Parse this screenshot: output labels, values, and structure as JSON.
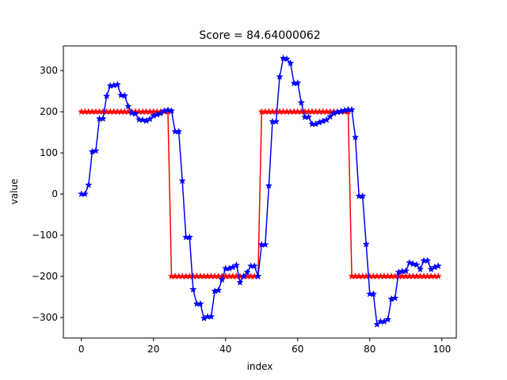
{
  "chart_data": {
    "type": "line",
    "title": "Score = 84.64000062",
    "xlabel": "index",
    "ylabel": "value",
    "xlim": [
      -5,
      104
    ],
    "ylim": [
      -350,
      360
    ],
    "xticks": [
      0,
      20,
      40,
      60,
      80,
      100
    ],
    "yticks": [
      -300,
      -200,
      -100,
      0,
      100,
      200,
      300
    ],
    "grid": false,
    "series": [
      {
        "color": "#ff0000",
        "marker": "star",
        "x": [
          0,
          1,
          2,
          3,
          4,
          5,
          6,
          7,
          8,
          9,
          10,
          11,
          12,
          13,
          14,
          15,
          16,
          17,
          18,
          19,
          20,
          21,
          22,
          23,
          24,
          25,
          26,
          27,
          28,
          29,
          30,
          31,
          32,
          33,
          34,
          35,
          36,
          37,
          38,
          39,
          40,
          41,
          42,
          43,
          44,
          45,
          46,
          47,
          48,
          49,
          50,
          51,
          52,
          53,
          54,
          55,
          56,
          57,
          58,
          59,
          60,
          61,
          62,
          63,
          64,
          65,
          66,
          67,
          68,
          69,
          70,
          71,
          72,
          73,
          74,
          75,
          76,
          77,
          78,
          79,
          80,
          81,
          82,
          83,
          84,
          85,
          86,
          87,
          88,
          89,
          90,
          91,
          92,
          93,
          94,
          95,
          96,
          97,
          98,
          99
        ],
        "values": [
          200,
          200,
          200,
          200,
          200,
          200,
          200,
          200,
          200,
          200,
          200,
          200,
          200,
          200,
          200,
          200,
          200,
          200,
          200,
          200,
          200,
          200,
          200,
          200,
          200,
          -200,
          -200,
          -200,
          -200,
          -200,
          -200,
          -200,
          -200,
          -200,
          -200,
          -200,
          -200,
          -200,
          -200,
          -200,
          -200,
          -200,
          -200,
          -200,
          -200,
          -200,
          -200,
          -200,
          -200,
          -200,
          200,
          200,
          200,
          200,
          200,
          200,
          200,
          200,
          200,
          200,
          200,
          200,
          200,
          200,
          200,
          200,
          200,
          200,
          200,
          200,
          200,
          200,
          200,
          200,
          200,
          -200,
          -200,
          -200,
          -200,
          -200,
          -200,
          -200,
          -200,
          -200,
          -200,
          -200,
          -200,
          -200,
          -200,
          -200,
          -200,
          -200,
          -200,
          -200,
          -200,
          -200,
          -200,
          -200,
          -200,
          -200
        ]
      },
      {
        "color": "#0000ff",
        "marker": "star",
        "x": [
          0,
          1,
          2,
          3,
          4,
          5,
          6,
          7,
          8,
          9,
          10,
          11,
          12,
          13,
          14,
          15,
          16,
          17,
          18,
          19,
          20,
          21,
          22,
          23,
          24,
          25,
          26,
          27,
          28,
          29,
          30,
          31,
          32,
          33,
          34,
          35,
          36,
          37,
          38,
          39,
          40,
          41,
          42,
          43,
          44,
          45,
          46,
          47,
          48,
          49,
          50,
          51,
          52,
          53,
          54,
          55,
          56,
          57,
          58,
          59,
          60,
          61,
          62,
          63,
          64,
          65,
          66,
          67,
          68,
          69,
          70,
          71,
          72,
          73,
          74,
          75,
          76,
          77,
          78,
          79,
          80,
          81,
          82,
          83,
          84,
          85,
          86,
          87,
          88,
          89,
          90,
          91,
          92,
          93,
          94,
          95,
          96,
          97,
          98,
          99
        ],
        "values": [
          0,
          0,
          22,
          103,
          105,
          183,
          183,
          238,
          263,
          264,
          266,
          240,
          239,
          213,
          197,
          195,
          181,
          180,
          178,
          182,
          190,
          193,
          196,
          202,
          204,
          202,
          152,
          152,
          32,
          -105,
          -105,
          -232,
          -267,
          -267,
          -302,
          -298,
          -298,
          -236,
          -234,
          -208,
          -181,
          -181,
          -178,
          -173,
          -215,
          -200,
          -190,
          -175,
          -175,
          -200,
          -123,
          -123,
          20,
          176,
          176,
          285,
          330,
          328,
          318,
          269,
          270,
          222,
          187,
          187,
          170,
          170,
          174,
          177,
          180,
          188,
          196,
          199,
          201,
          203,
          205,
          205,
          138,
          -5,
          -5,
          -122,
          -243,
          -243,
          -317,
          -310,
          -310,
          -305,
          -255,
          -253,
          -190,
          -188,
          -187,
          -167,
          -170,
          -172,
          -183,
          -162,
          -162,
          -183,
          -178,
          -175
        ]
      }
    ]
  }
}
